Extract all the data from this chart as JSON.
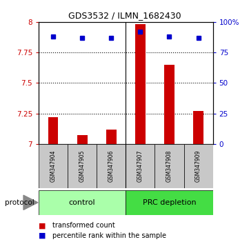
{
  "title": "GDS3532 / ILMN_1682430",
  "samples": [
    "GSM347904",
    "GSM347905",
    "GSM347906",
    "GSM347907",
    "GSM347908",
    "GSM347909"
  ],
  "red_values": [
    7.22,
    7.07,
    7.12,
    7.98,
    7.65,
    7.27
  ],
  "blue_values": [
    88,
    87,
    87,
    92,
    88,
    87
  ],
  "ylim_left": [
    7.0,
    8.0
  ],
  "ylim_right": [
    0,
    100
  ],
  "yticks_left": [
    7.0,
    7.25,
    7.5,
    7.75,
    8.0
  ],
  "yticks_right": [
    0,
    25,
    50,
    75,
    100
  ],
  "ytick_labels_left": [
    "7",
    "7.25",
    "7.5",
    "7.75",
    "8"
  ],
  "ytick_labels_right": [
    "0",
    "25",
    "50",
    "75",
    "100%"
  ],
  "groups": [
    {
      "label": "control",
      "indices": [
        0,
        1,
        2
      ],
      "color": "#aaffaa"
    },
    {
      "label": "PRC depletion",
      "indices": [
        3,
        4,
        5
      ],
      "color": "#44dd44"
    }
  ],
  "protocol_label": "protocol",
  "legend_red": "transformed count",
  "legend_blue": "percentile rank within the sample",
  "bar_color": "#cc0000",
  "dot_color": "#0000cc",
  "grid_color": "#000000",
  "axis_label_color_left": "#cc0000",
  "axis_label_color_right": "#0000cc",
  "bg_plot": "#ffffff",
  "bg_sample_box": "#c8c8c8",
  "dotted_yticks": [
    7.25,
    7.5,
    7.75
  ],
  "bar_width": 0.35
}
